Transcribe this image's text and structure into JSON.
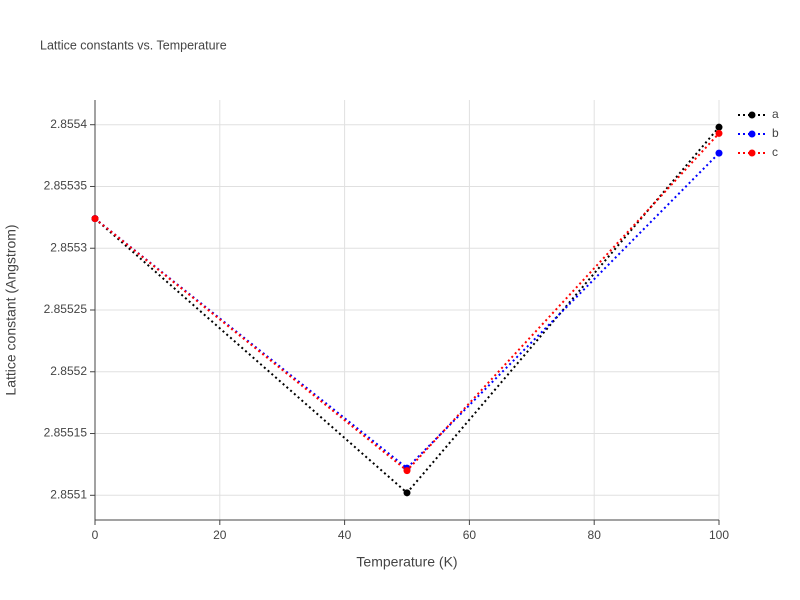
{
  "chart_data": {
    "type": "line",
    "title": "Lattice constants vs. Temperature",
    "x_label": "Temperature (K)",
    "y_label": "Lattice constant (Angstrom)",
    "x": [
      0,
      50,
      100
    ],
    "series": [
      {
        "name": "a",
        "color": "#000000",
        "values": [
          2.855324,
          2.855102,
          2.855398
        ]
      },
      {
        "name": "b",
        "color": "#0000ff",
        "values": [
          2.855324,
          2.855122,
          2.855377
        ]
      },
      {
        "name": "c",
        "color": "#ff0000",
        "values": [
          2.855324,
          2.85512,
          2.855393
        ]
      }
    ],
    "xlim": [
      0,
      100
    ],
    "xticks": [
      0,
      20,
      40,
      60,
      80,
      100
    ],
    "ylim": [
      2.85508,
      2.85542
    ],
    "yticks": [
      2.8551,
      2.85515,
      2.8552,
      2.85525,
      2.8553,
      2.85535,
      2.8554
    ],
    "grid": true,
    "line_style": "dotted",
    "legend": "outside-top-right"
  }
}
